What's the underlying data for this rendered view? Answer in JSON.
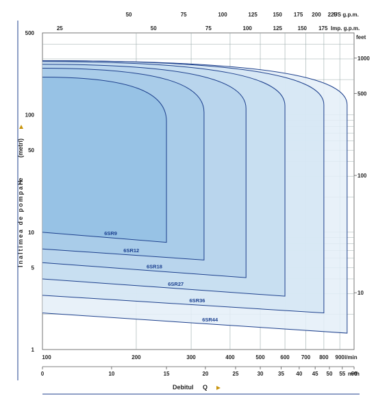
{
  "chart_data": {
    "type": "area",
    "ylabel_left": "Inaltimea de pompare",
    "ylabel_paren": "(metri)",
    "ylabel_symbol": "H",
    "xlabel": "Debitul",
    "xlabel_symbol": "Q",
    "yscale": "log",
    "xscale": "log",
    "ylim": [
      1,
      500
    ],
    "xlim_lmin": [
      100,
      1000
    ],
    "left_ticks": [
      "1",
      "5",
      "10",
      "50",
      "100",
      "500"
    ],
    "right_ticks": [
      "10",
      "100",
      "500",
      "1000"
    ],
    "right_unit": "feet",
    "top_us_unit": "US g.p.m.",
    "top_us_ticks": [
      "50",
      "75",
      "100",
      "125",
      "150",
      "175",
      "200",
      "225"
    ],
    "top_imp_unit": "Imp. g.p.m.",
    "top_imp_ticks": [
      "25",
      "50",
      "75",
      "100",
      "125",
      "150",
      "175"
    ],
    "bottom_lmin_unit": "l/min",
    "bottom_lmin_ticks": [
      "100",
      "200",
      "300",
      "400",
      "500",
      "600",
      "700",
      "800",
      "900"
    ],
    "bottom_m3h_unit": "m³/h",
    "bottom_m3h_ticks": [
      "0",
      "10",
      "15",
      "20",
      "25",
      "30",
      "35",
      "40",
      "45",
      "50",
      "55",
      "60"
    ],
    "series": [
      {
        "name": "6SR44",
        "qmax_lmin": 950,
        "h_top_m": 290,
        "h_bottom_m": 1.38,
        "h_start_bottom_m": 2.05
      },
      {
        "name": "6SR36",
        "qmax_lmin": 800,
        "h_top_m": 290,
        "h_bottom_m": 2.05,
        "h_start_bottom_m": 2.9
      },
      {
        "name": "6SR27",
        "qmax_lmin": 600,
        "h_top_m": 285,
        "h_bottom_m": 2.85,
        "h_start_bottom_m": 4.0
      },
      {
        "name": "6SR18",
        "qmax_lmin": 450,
        "h_top_m": 270,
        "h_bottom_m": 4.1,
        "h_start_bottom_m": 5.5
      },
      {
        "name": "6SR12",
        "qmax_lmin": 330,
        "h_top_m": 250,
        "h_bottom_m": 5.8,
        "h_start_bottom_m": 7.2
      },
      {
        "name": "6SR9",
        "qmax_lmin": 250,
        "h_top_m": 210,
        "h_bottom_m": 8.2,
        "h_start_bottom_m": 10
      }
    ],
    "fill_colors": [
      "#e4eff8",
      "#d5e6f4",
      "#c6ddf0",
      "#b6d3ec",
      "#a6cae8",
      "#94bfe4"
    ],
    "curve_color": "#1c3f8c"
  }
}
